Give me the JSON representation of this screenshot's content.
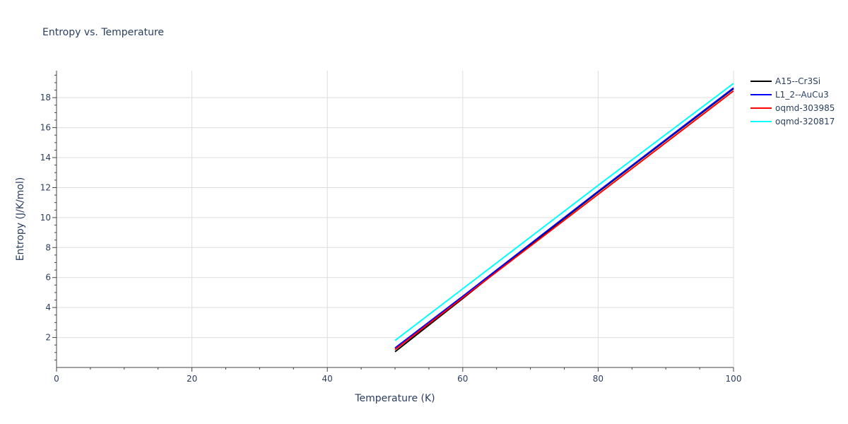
{
  "chart_data": {
    "type": "line",
    "title": "Entropy vs. Temperature",
    "xlabel": "Temperature (K)",
    "ylabel": "Entropy (J/K/mol)",
    "xlim": [
      0,
      100
    ],
    "ylim": [
      0,
      19.8
    ],
    "xticks": [
      0,
      20,
      40,
      60,
      80,
      100
    ],
    "yticks": [
      2,
      4,
      6,
      8,
      10,
      12,
      14,
      16,
      18
    ],
    "grid": true,
    "legend_position": "top-right, outside plot",
    "series": [
      {
        "name": "A15--Cr3Si",
        "color": "#000000",
        "x": [
          50,
          60,
          70,
          80,
          90,
          100
        ],
        "y": [
          1.05,
          4.6,
          8.2,
          11.7,
          15.15,
          18.6
        ]
      },
      {
        "name": "L1_2--AuCu3",
        "color": "#0000ff",
        "x": [
          50,
          60,
          70,
          80,
          90,
          100
        ],
        "y": [
          1.3,
          4.75,
          8.25,
          11.75,
          15.2,
          18.65
        ]
      },
      {
        "name": "oqmd-303985",
        "color": "#ff0000",
        "x": [
          50,
          60,
          70,
          80,
          90,
          100
        ],
        "y": [
          1.2,
          4.65,
          8.1,
          11.55,
          15.0,
          18.45
        ]
      },
      {
        "name": "oqmd-320817",
        "color": "#00ffff",
        "x": [
          50,
          60,
          70,
          80,
          90,
          100
        ],
        "y": [
          1.8,
          5.25,
          8.7,
          12.15,
          15.55,
          18.95
        ]
      }
    ]
  }
}
